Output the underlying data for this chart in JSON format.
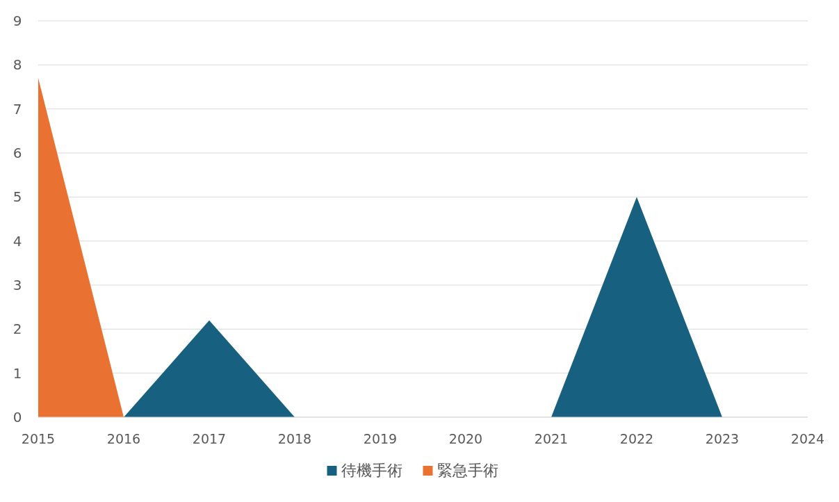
{
  "chart_data": {
    "type": "area",
    "x": [
      2015,
      2016,
      2017,
      2018,
      2019,
      2020,
      2021,
      2022,
      2023,
      2024
    ],
    "series": [
      {
        "name": "待機手術",
        "color": "#17607f",
        "values": [
          0,
          0,
          2.2,
          0,
          0,
          0,
          0,
          5,
          0,
          0
        ]
      },
      {
        "name": "緊急手術",
        "color": "#e97132",
        "values": [
          7.7,
          0,
          0,
          0,
          0,
          0,
          0,
          0,
          0,
          0
        ]
      }
    ],
    "xlim": [
      2015,
      2024
    ],
    "xticks": [
      2015,
      2016,
      2017,
      2018,
      2019,
      2020,
      2021,
      2022,
      2023,
      2024
    ],
    "ylim": [
      0,
      9
    ],
    "yticks": [
      0,
      1,
      2,
      3,
      4,
      5,
      6,
      7,
      8,
      9
    ],
    "grid": "y",
    "legend": "bottom"
  }
}
